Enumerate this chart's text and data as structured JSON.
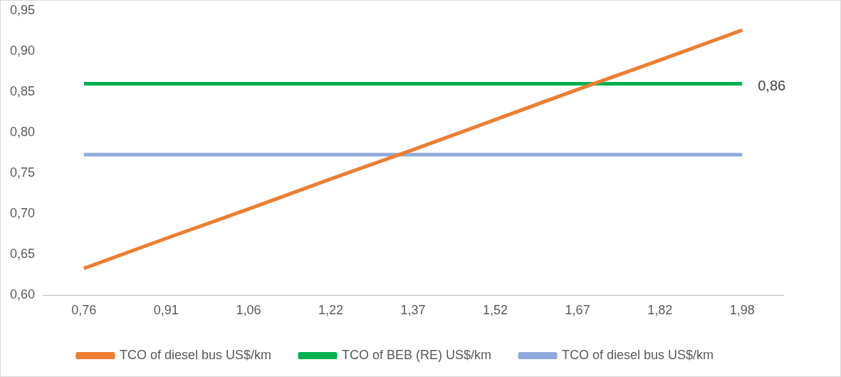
{
  "chart_data": {
    "type": "line",
    "categories": [
      "0,76",
      "0,91",
      "1,06",
      "1,22",
      "1,37",
      "1,52",
      "1,67",
      "1,82",
      "1,98"
    ],
    "series": [
      {
        "name": "TCO of diesel bus US$/km",
        "color": "#ed7d31",
        "values": [
          0.633,
          0.67,
          0.706,
          0.743,
          0.779,
          0.816,
          0.853,
          0.889,
          0.926
        ]
      },
      {
        "name": "TCO of BEB (RE) US$/km",
        "color": "#00b050",
        "values": [
          0.86,
          0.86,
          0.86,
          0.86,
          0.86,
          0.86,
          0.86,
          0.86,
          0.86
        ],
        "value_labels": [
          null,
          null,
          null,
          null,
          null,
          null,
          null,
          null,
          "0,86"
        ]
      },
      {
        "name": "TCO of diesel bus US$/km",
        "color": "#8faadc",
        "values": [
          0.773,
          0.773,
          0.773,
          0.773,
          0.773,
          0.773,
          0.773,
          0.773,
          0.773
        ]
      }
    ],
    "ylim": [
      0.6,
      0.95
    ],
    "yticks": [
      {
        "value": 0.6,
        "label": "0,60"
      },
      {
        "value": 0.65,
        "label": "0,65"
      },
      {
        "value": 0.7,
        "label": "0,70"
      },
      {
        "value": 0.75,
        "label": "0,75"
      },
      {
        "value": 0.8,
        "label": "0,80"
      },
      {
        "value": 0.85,
        "label": "0,85"
      },
      {
        "value": 0.9,
        "label": "0,90"
      },
      {
        "value": 0.95,
        "label": "0,95"
      }
    ],
    "grid": false,
    "legend": "bottom",
    "marker": "none",
    "line_style": "solid"
  }
}
